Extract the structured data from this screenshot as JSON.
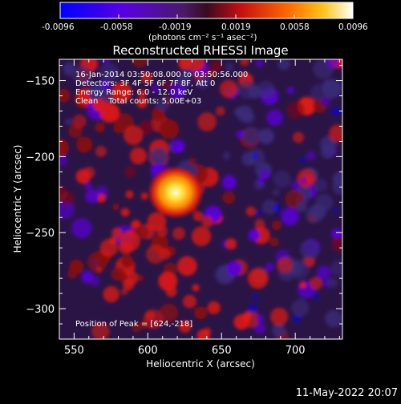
{
  "colorbar": {
    "ticks": [
      "-0.0096",
      "-0.0058",
      "-0.0019",
      "0.0019",
      "0.0058",
      "0.0096"
    ],
    "tick_values": [
      -0.0096,
      -0.0058,
      -0.0019,
      0.0019,
      0.0058,
      0.0096
    ],
    "unit_label": "(photons cm⁻² s⁻¹ asec⁻²)"
  },
  "title": "Reconstructed RHESSI Image",
  "info": {
    "time": "16-Jan-2014 03:50:08.000 to 03:50:56.000",
    "detectors": "Detectors: 3F 4F 5F 6F 7F 8F, Att 0",
    "energy": "Energy Range: 6.0 - 12.0 keV",
    "clean": "Clean    Total counts: 5.00E+03"
  },
  "peak_label": "Position of Peak = [624,-218]",
  "axes": {
    "xlabel": "Heliocentric X (arcsec)",
    "ylabel": "Heliocentric Y (arcsec)",
    "xlim": [
      540,
      732
    ],
    "ylim": [
      -320,
      -136
    ],
    "xticks": [
      {
        "value": 550,
        "label": "550"
      },
      {
        "value": 600,
        "label": "600"
      },
      {
        "value": 650,
        "label": "650"
      },
      {
        "value": 700,
        "label": "700"
      }
    ],
    "yticks": [
      {
        "value": -150,
        "label": "−150"
      },
      {
        "value": -200,
        "label": "−200"
      },
      {
        "value": -250,
        "label": "−250"
      },
      {
        "value": -300,
        "label": "−300"
      }
    ]
  },
  "footer_date": "11-May-2022 20:07",
  "colors": {
    "background": "#000000",
    "foreground": "#ffffff",
    "colormap": [
      "#0b0bff",
      "#5a00d8",
      "#3a2a78",
      "#8a0a10",
      "#e01a14",
      "#ff7a00",
      "#ffd21a",
      "#ffffff"
    ]
  }
}
